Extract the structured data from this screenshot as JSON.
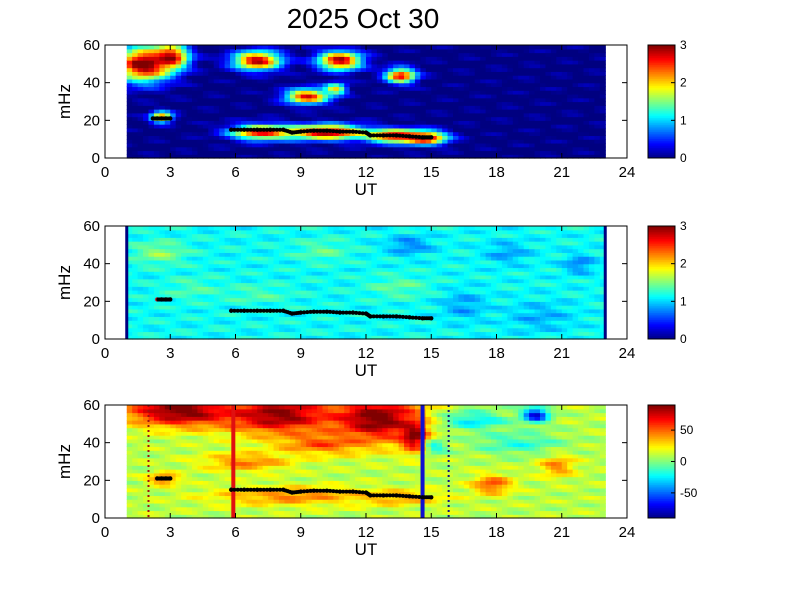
{
  "title": "2025 Oct 30",
  "chart_data": [
    {
      "type": "heatmap",
      "panel": "top",
      "xlabel": "UT",
      "ylabel": "mHz",
      "xlim": [
        0,
        24
      ],
      "ylim": [
        0,
        60
      ],
      "xticks": [
        "0",
        "3",
        "6",
        "9",
        "12",
        "15",
        "18",
        "21",
        "24"
      ],
      "yticks": [
        "0",
        "20",
        "40",
        "60"
      ],
      "colorbar": {
        "range": [
          0,
          3
        ],
        "ticks": [
          "0",
          "1",
          "2",
          "3"
        ]
      },
      "data_x_range": [
        1,
        23
      ],
      "blobs": [
        {
          "x": 1.8,
          "y": 50,
          "rx": 1.3,
          "ry": 9,
          "value": 3.2
        },
        {
          "x": 3.0,
          "y": 54,
          "rx": 0.8,
          "ry": 6,
          "value": 3.0
        },
        {
          "x": 7.0,
          "y": 52,
          "rx": 1.1,
          "ry": 5,
          "value": 2.9
        },
        {
          "x": 10.8,
          "y": 52,
          "rx": 1.0,
          "ry": 5,
          "value": 2.9
        },
        {
          "x": 13.6,
          "y": 44,
          "rx": 0.7,
          "ry": 4,
          "value": 2.7
        },
        {
          "x": 9.3,
          "y": 33,
          "rx": 1.0,
          "ry": 4,
          "value": 2.7
        },
        {
          "x": 10.6,
          "y": 37,
          "rx": 0.5,
          "ry": 3,
          "value": 2.0
        },
        {
          "x": 2.6,
          "y": 22,
          "rx": 0.5,
          "ry": 3,
          "value": 2.3
        },
        {
          "x": 7.2,
          "y": 14,
          "rx": 1.4,
          "ry": 4,
          "value": 2.8
        },
        {
          "x": 10.2,
          "y": 14,
          "rx": 1.8,
          "ry": 4,
          "value": 3.0
        },
        {
          "x": 13.3,
          "y": 12,
          "rx": 1.3,
          "ry": 3.5,
          "value": 2.8
        },
        {
          "x": 14.7,
          "y": 11,
          "rx": 1.0,
          "ry": 3.5,
          "value": 3.0
        }
      ],
      "ridge": [
        {
          "x": 2.2,
          "y": 21
        },
        {
          "x": 2.4,
          "y": 21
        },
        {
          "x": 2.6,
          "y": 21
        },
        {
          "x": 2.8,
          "y": 21
        },
        {
          "x": 3.0,
          "y": 21
        },
        {
          "x": 5.8,
          "y": 15
        },
        {
          "x": 6.4,
          "y": 15
        },
        {
          "x": 7.0,
          "y": 15
        },
        {
          "x": 7.6,
          "y": 15
        },
        {
          "x": 8.2,
          "y": 15
        },
        {
          "x": 8.6,
          "y": 13.5
        },
        {
          "x": 9.0,
          "y": 14
        },
        {
          "x": 9.6,
          "y": 14.5
        },
        {
          "x": 10.2,
          "y": 14.5
        },
        {
          "x": 10.8,
          "y": 14
        },
        {
          "x": 11.4,
          "y": 14
        },
        {
          "x": 12.0,
          "y": 13.5
        },
        {
          "x": 12.2,
          "y": 12
        },
        {
          "x": 12.8,
          "y": 12
        },
        {
          "x": 13.4,
          "y": 12
        },
        {
          "x": 14.0,
          "y": 11.5
        },
        {
          "x": 14.6,
          "y": 11
        },
        {
          "x": 15.0,
          "y": 11
        }
      ]
    },
    {
      "type": "heatmap",
      "panel": "middle",
      "xlabel": "UT",
      "ylabel": "mHz",
      "xlim": [
        0,
        24
      ],
      "ylim": [
        0,
        60
      ],
      "xticks": [
        "0",
        "3",
        "6",
        "9",
        "12",
        "15",
        "18",
        "21",
        "24"
      ],
      "yticks": [
        "0",
        "20",
        "40",
        "60"
      ],
      "colorbar": {
        "range": [
          0,
          3
        ],
        "ticks": [
          "0",
          "1",
          "2",
          "3"
        ]
      },
      "data_x_range": [
        1,
        23
      ],
      "base_value": 1.15,
      "blobs": [
        {
          "x": 2.5,
          "y": 46,
          "rx": 1.2,
          "ry": 6,
          "value": 1.55
        },
        {
          "x": 4.0,
          "y": 27,
          "rx": 1.2,
          "ry": 6,
          "value": 1.35
        },
        {
          "x": 7.0,
          "y": 24,
          "rx": 1.5,
          "ry": 5,
          "value": 1.35
        },
        {
          "x": 10.0,
          "y": 47,
          "rx": 1.2,
          "ry": 6,
          "value": 1.4
        },
        {
          "x": 13.5,
          "y": 28,
          "rx": 1.4,
          "ry": 6,
          "value": 1.4
        },
        {
          "x": 14.0,
          "y": 50,
          "rx": 1.0,
          "ry": 5,
          "value": 0.75
        },
        {
          "x": 16.5,
          "y": 18,
          "rx": 1.0,
          "ry": 8,
          "value": 0.85
        },
        {
          "x": 18.5,
          "y": 46,
          "rx": 1.0,
          "ry": 6,
          "value": 0.85
        },
        {
          "x": 21.8,
          "y": 40,
          "rx": 0.7,
          "ry": 5,
          "value": 0.75
        },
        {
          "x": 20.0,
          "y": 12,
          "rx": 1.5,
          "ry": 8,
          "value": 0.9
        }
      ],
      "edge_value": 0.0,
      "ridge": [
        {
          "x": 2.4,
          "y": 21
        },
        {
          "x": 2.6,
          "y": 21
        },
        {
          "x": 2.8,
          "y": 21
        },
        {
          "x": 3.0,
          "y": 21
        },
        {
          "x": 5.8,
          "y": 15
        },
        {
          "x": 6.4,
          "y": 15
        },
        {
          "x": 7.0,
          "y": 15
        },
        {
          "x": 7.6,
          "y": 15
        },
        {
          "x": 8.2,
          "y": 15
        },
        {
          "x": 8.6,
          "y": 13.5
        },
        {
          "x": 9.0,
          "y": 14
        },
        {
          "x": 9.6,
          "y": 14.5
        },
        {
          "x": 10.2,
          "y": 14.5
        },
        {
          "x": 10.8,
          "y": 14
        },
        {
          "x": 11.4,
          "y": 14
        },
        {
          "x": 12.0,
          "y": 13.5
        },
        {
          "x": 12.2,
          "y": 12
        },
        {
          "x": 12.8,
          "y": 12
        },
        {
          "x": 13.4,
          "y": 12
        },
        {
          "x": 14.0,
          "y": 11.5
        },
        {
          "x": 14.6,
          "y": 11
        },
        {
          "x": 15.0,
          "y": 11
        }
      ]
    },
    {
      "type": "heatmap",
      "panel": "bottom",
      "xlabel": "UT",
      "ylabel": "mHz",
      "xlim": [
        0,
        24
      ],
      "ylim": [
        0,
        60
      ],
      "xticks": [
        "0",
        "3",
        "6",
        "9",
        "12",
        "15",
        "18",
        "21",
        "24"
      ],
      "yticks": [
        "0",
        "20",
        "40",
        "60"
      ],
      "colorbar": {
        "range": [
          -90,
          90
        ],
        "ticks": [
          "50",
          "0",
          "-50"
        ],
        "tick_values": [
          50,
          0,
          -50
        ]
      },
      "data_x_range": [
        1,
        23
      ],
      "base_value": 10,
      "blobs": [
        {
          "x": 3.5,
          "y": 57,
          "rx": 2.5,
          "ry": 8,
          "value": 95
        },
        {
          "x": 8.0,
          "y": 55,
          "rx": 2.5,
          "ry": 10,
          "value": 90
        },
        {
          "x": 12.5,
          "y": 53,
          "rx": 2.0,
          "ry": 12,
          "value": 95
        },
        {
          "x": 14.2,
          "y": 44,
          "rx": 0.6,
          "ry": 8,
          "value": 95
        },
        {
          "x": 10.0,
          "y": 40,
          "rx": 2.0,
          "ry": 6,
          "value": 55
        },
        {
          "x": 6.5,
          "y": 30,
          "rx": 2.0,
          "ry": 5,
          "value": 45
        },
        {
          "x": 2.7,
          "y": 21,
          "rx": 0.7,
          "ry": 3,
          "value": 55
        },
        {
          "x": 8.5,
          "y": 12,
          "rx": 3.5,
          "ry": 5,
          "value": 45
        },
        {
          "x": 13.5,
          "y": 11,
          "rx": 2.0,
          "ry": 4,
          "value": 40
        },
        {
          "x": 17.8,
          "y": 18,
          "rx": 0.9,
          "ry": 5,
          "value": 55
        },
        {
          "x": 20.8,
          "y": 28,
          "rx": 0.8,
          "ry": 6,
          "value": 45
        },
        {
          "x": 19.8,
          "y": 55,
          "rx": 0.6,
          "ry": 4,
          "value": -75
        },
        {
          "x": 17.0,
          "y": 52,
          "rx": 1.5,
          "ry": 5,
          "value": -25
        },
        {
          "x": 19.0,
          "y": 40,
          "rx": 2.0,
          "ry": 6,
          "value": -15
        },
        {
          "x": 15.2,
          "y": 38,
          "rx": 0.5,
          "ry": 4,
          "value": -20
        }
      ],
      "ridge": [
        {
          "x": 2.4,
          "y": 21
        },
        {
          "x": 2.6,
          "y": 21
        },
        {
          "x": 2.8,
          "y": 21
        },
        {
          "x": 3.0,
          "y": 21
        },
        {
          "x": 5.8,
          "y": 15
        },
        {
          "x": 6.4,
          "y": 15
        },
        {
          "x": 7.0,
          "y": 15
        },
        {
          "x": 7.6,
          "y": 15
        },
        {
          "x": 8.2,
          "y": 15
        },
        {
          "x": 8.6,
          "y": 13.5
        },
        {
          "x": 9.0,
          "y": 14
        },
        {
          "x": 9.6,
          "y": 14.5
        },
        {
          "x": 10.2,
          "y": 14.5
        },
        {
          "x": 10.8,
          "y": 14
        },
        {
          "x": 11.4,
          "y": 14
        },
        {
          "x": 12.0,
          "y": 13.5
        },
        {
          "x": 12.2,
          "y": 12
        },
        {
          "x": 12.8,
          "y": 12
        },
        {
          "x": 13.4,
          "y": 12
        },
        {
          "x": 14.0,
          "y": 11.5
        },
        {
          "x": 14.6,
          "y": 11
        },
        {
          "x": 15.0,
          "y": 11
        }
      ],
      "markers": [
        {
          "x": 5.9,
          "style": "solid",
          "color": "#e01010"
        },
        {
          "x": 14.6,
          "style": "solid",
          "color": "#1010d0"
        },
        {
          "x": 2.0,
          "style": "dotted",
          "color": "#a01010"
        },
        {
          "x": 15.8,
          "style": "dotted",
          "color": "#101080"
        }
      ]
    }
  ]
}
